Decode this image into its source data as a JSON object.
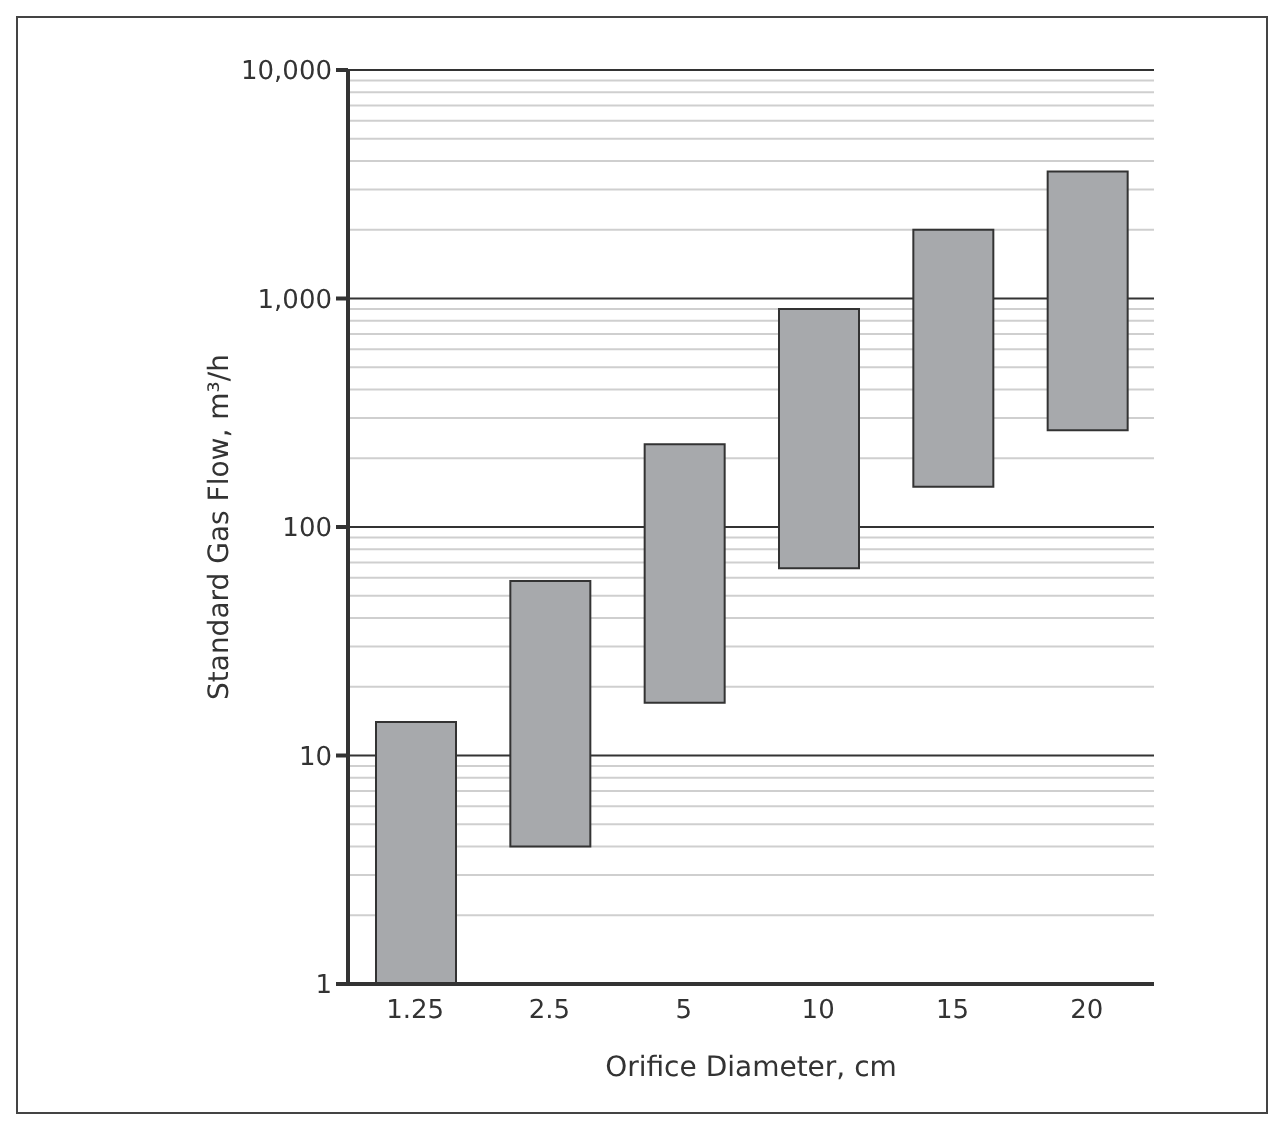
{
  "chart_data": {
    "type": "bar",
    "xlabel": "Orifice Diameter, cm",
    "ylabel": "Standard Gas Flow, m³/h",
    "categories": [
      "1.25",
      "2.5",
      "5",
      "10",
      "15",
      "20"
    ],
    "values": [
      13,
      54,
      213,
      834,
      1850,
      3335
    ],
    "base": [
      1,
      4,
      17,
      66,
      150,
      265
    ],
    "color": "#a7a9ac",
    "log": true,
    "ylim": [
      1,
      10000
    ],
    "yticks": [
      1,
      10,
      100,
      {
        "value": 1000,
        "label": "1,000"
      },
      {
        "value": 10000,
        "label": "10,000"
      }
    ],
    "grid": true
  }
}
